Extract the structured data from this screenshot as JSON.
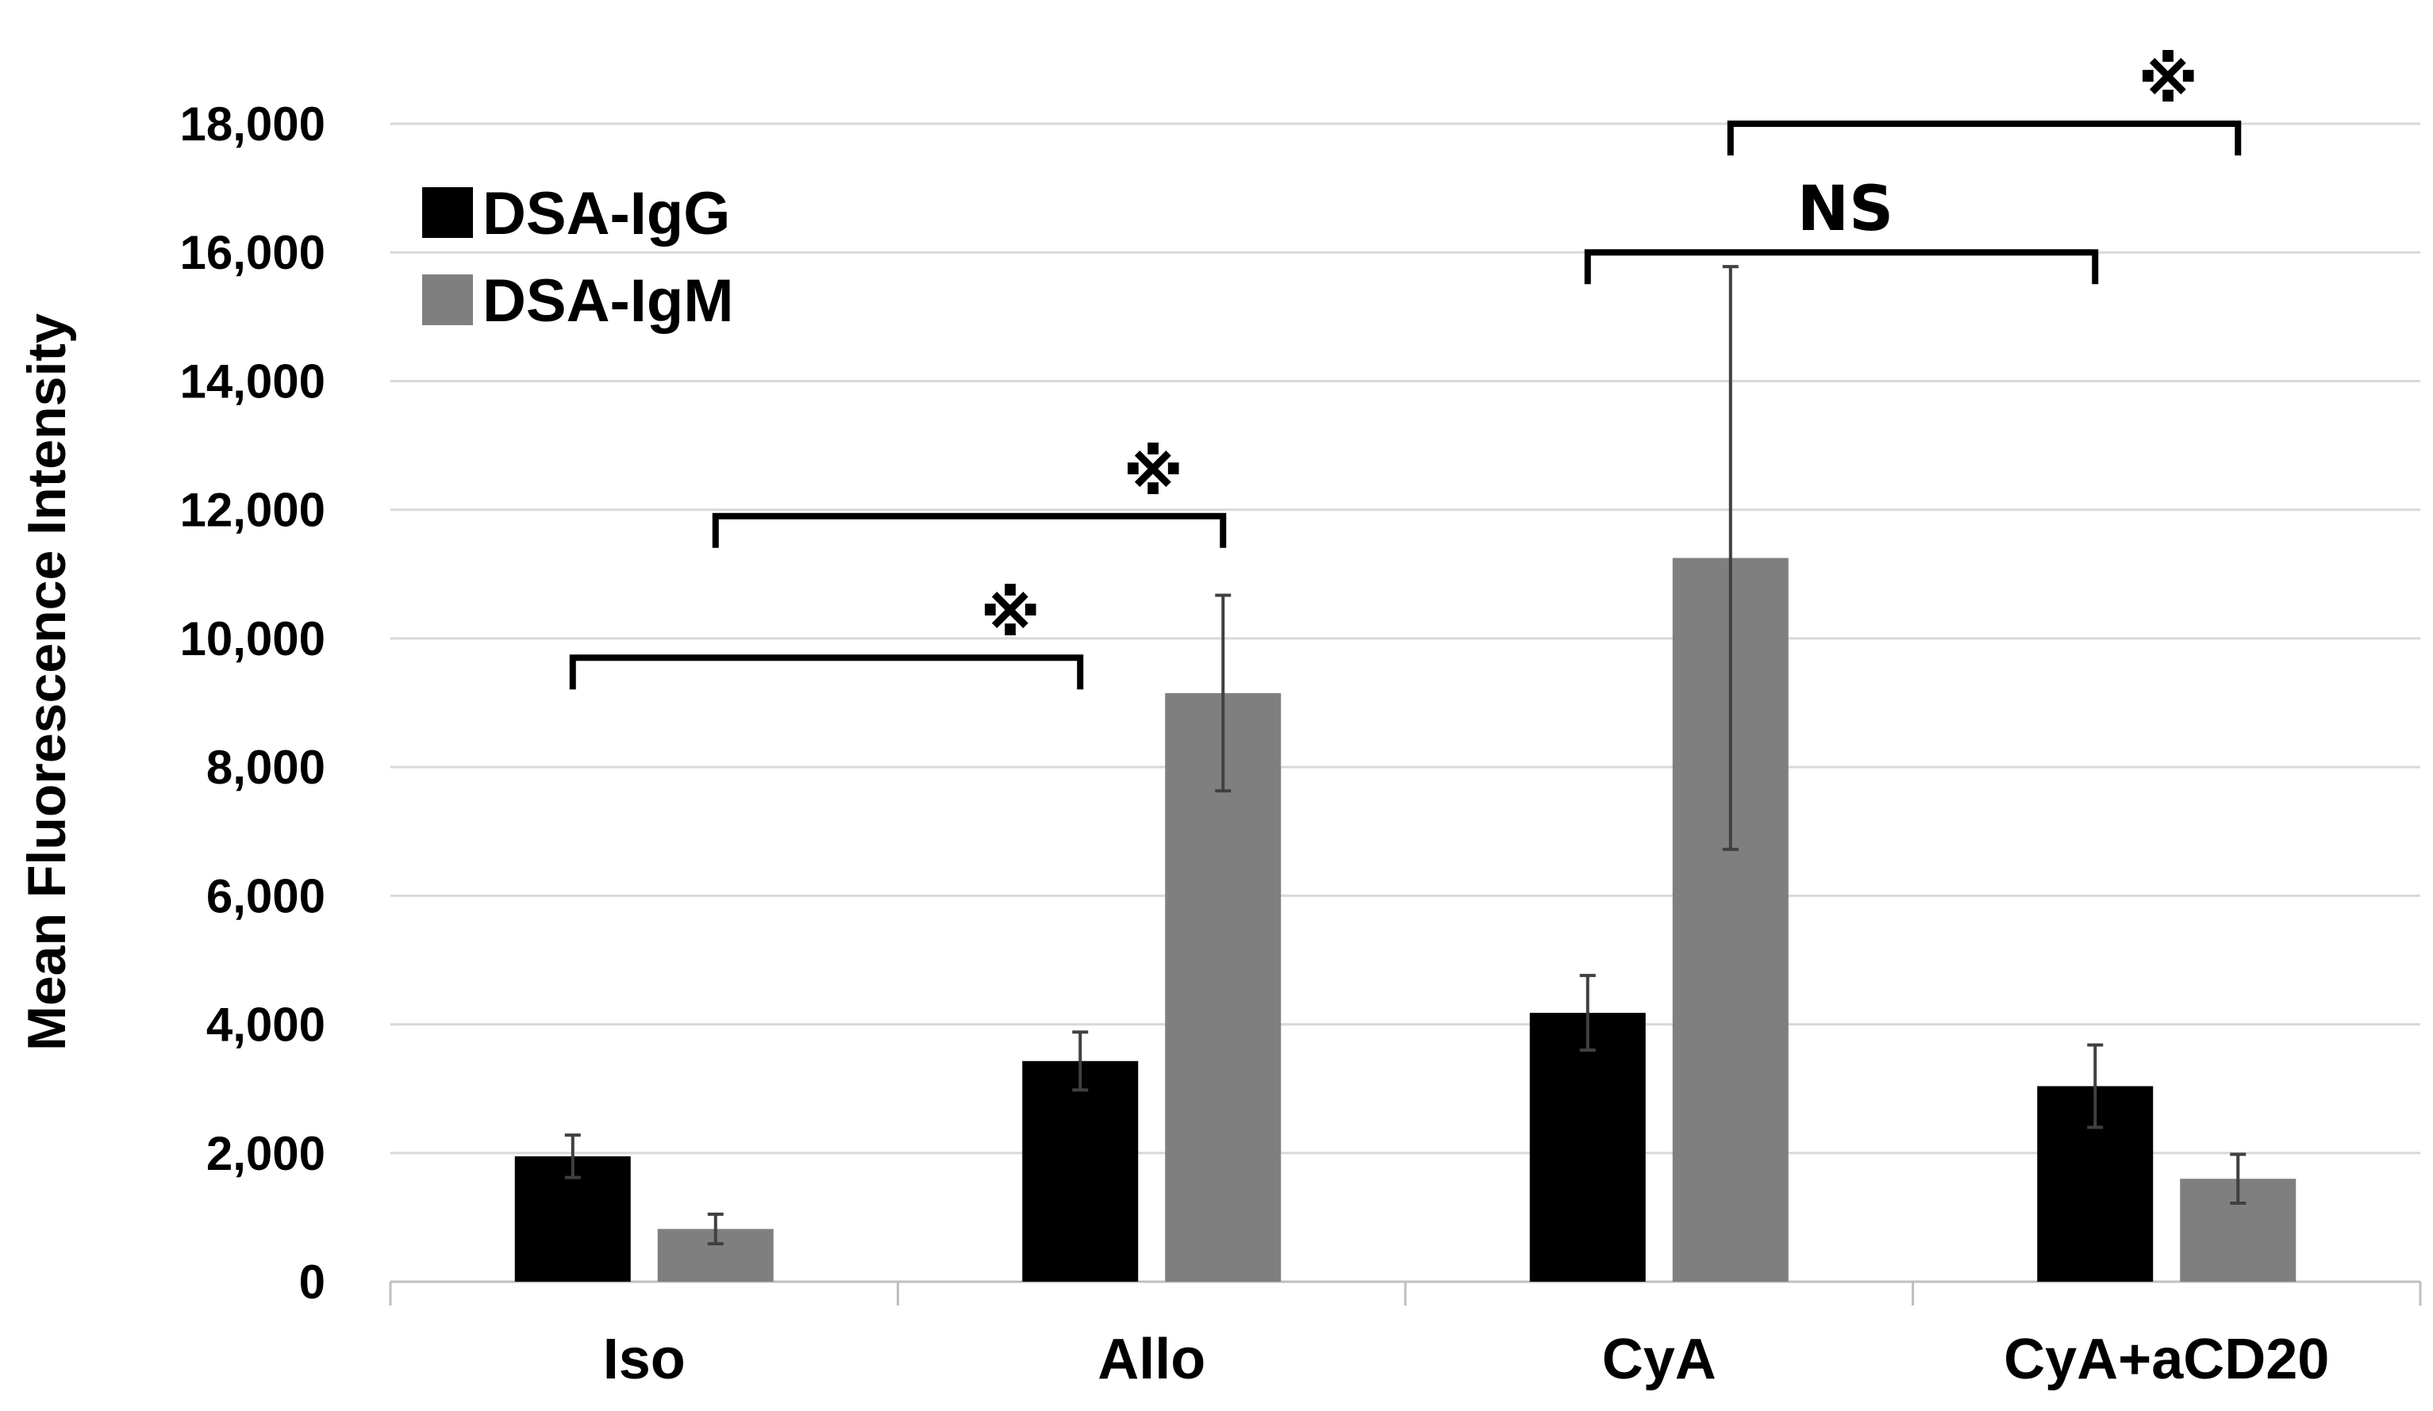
{
  "chart_data": {
    "type": "bar",
    "title": "",
    "xlabel": "",
    "ylabel": "Mean Fluorescence Intensity",
    "ylim": [
      0,
      18000
    ],
    "yticks": [
      0,
      2000,
      4000,
      6000,
      8000,
      10000,
      12000,
      14000,
      16000,
      18000
    ],
    "ytick_labels": [
      "0",
      "2,000",
      "4,000",
      "6,000",
      "8,000",
      "10,000",
      "12,000",
      "14,000",
      "16,000",
      "18,000"
    ],
    "grid": true,
    "legend_position": "top-left",
    "categories": [
      "Iso",
      "Allo",
      "CyA",
      "CyA+aCD20"
    ],
    "series": [
      {
        "name": "DSA-IgG",
        "color": "#000000",
        "values": [
          1950,
          3430,
          4180,
          3040
        ],
        "error": [
          330,
          450,
          580,
          640
        ]
      },
      {
        "name": "DSA-IgM",
        "color": "#7f7f7f",
        "values": [
          820,
          9150,
          11250,
          1600
        ],
        "error": [
          230,
          1520,
          4530,
          380
        ]
      }
    ],
    "annotations": [
      {
        "label": "※",
        "from": [
          0,
          0
        ],
        "to": [
          1,
          0
        ],
        "y": 9700
      },
      {
        "label": "※",
        "from": [
          0,
          1
        ],
        "to": [
          1,
          1
        ],
        "y": 11900
      },
      {
        "label": "NS",
        "from": [
          2,
          0
        ],
        "to": [
          3,
          0
        ],
        "y": 16000
      },
      {
        "label": "※",
        "from": [
          2,
          1
        ],
        "to": [
          3,
          1
        ],
        "y": 18000
      }
    ]
  }
}
